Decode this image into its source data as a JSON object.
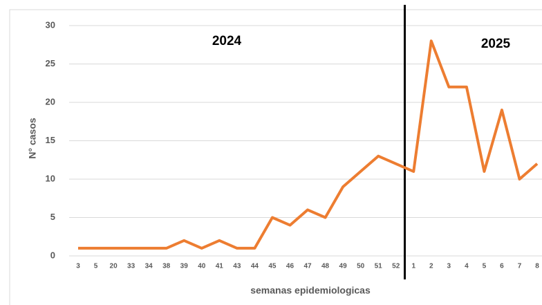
{
  "chart_data": {
    "type": "line",
    "x_label": "semanas epidemiologicas",
    "y_label": "N° casos",
    "categories": [
      "3",
      "5",
      "20",
      "33",
      "34",
      "38",
      "39",
      "40",
      "41",
      "43",
      "44",
      "45",
      "46",
      "47",
      "48",
      "49",
      "50",
      "51",
      "52",
      "1",
      "2",
      "3",
      "4",
      "5",
      "6",
      "7",
      "8"
    ],
    "series": [
      {
        "name": "casos",
        "color": "#ed7d31",
        "values": [
          1,
          1,
          1,
          1,
          1,
          1,
          2,
          1,
          2,
          1,
          1,
          5,
          4,
          6,
          5,
          9,
          11,
          13,
          12,
          11,
          28,
          22,
          22,
          11,
          19,
          10,
          12
        ]
      }
    ],
    "ylim": [
      0,
      30
    ],
    "yticks": [
      0,
      5,
      10,
      15,
      20,
      25,
      30
    ],
    "grid": true,
    "annotations": [
      "2024",
      "2025"
    ]
  }
}
